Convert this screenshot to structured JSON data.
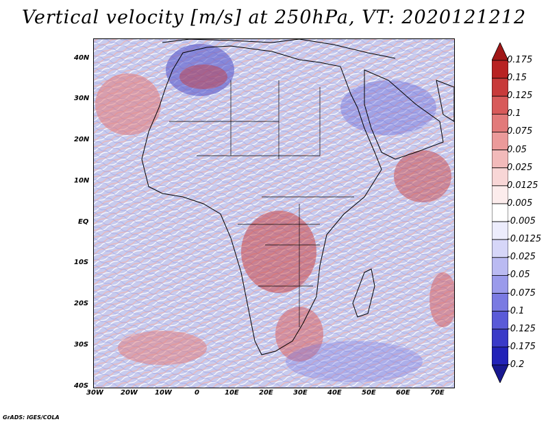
{
  "title": "Vertical velocity [m/s] at 250hPa, VT: 2020121212",
  "footer": "GrADS: IGES/COLA",
  "map": {
    "lon_range": [
      -30,
      75
    ],
    "lat_range": [
      -40,
      45
    ],
    "x_ticks": [
      "30W",
      "20W",
      "10W",
      "0",
      "10E",
      "20E",
      "30E",
      "40E",
      "50E",
      "60E",
      "70E"
    ],
    "y_ticks": [
      "40N",
      "30N",
      "20N",
      "10N",
      "EQ",
      "10S",
      "20S",
      "30S",
      "40S"
    ],
    "field": "vertical velocity",
    "units": "m/s",
    "level": "250hPa"
  },
  "colorbar": {
    "labels": [
      "0.175",
      "0.15",
      "0.125",
      "0.1",
      "0.075",
      "0.05",
      "0.025",
      "0.0125",
      "0.005",
      "-0.005",
      "-0.0125",
      "-0.025",
      "-0.05",
      "-0.075",
      "-0.1",
      "-0.125",
      "-0.175",
      "-0.2"
    ],
    "colors": [
      "#a01818",
      "#b82222",
      "#c83a3a",
      "#d85a5a",
      "#e27a7a",
      "#eb9a9a",
      "#f2baba",
      "#f8d6d6",
      "#fcecec",
      "#ffffff",
      "#ececfc",
      "#d6d6f8",
      "#babaf2",
      "#9a9aeb",
      "#7a7ae2",
      "#5a5ad8",
      "#3a3ac8",
      "#2222b8",
      "#181890"
    ]
  }
}
